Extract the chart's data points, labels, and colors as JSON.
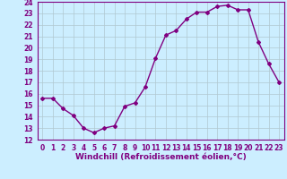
{
  "x": [
    0,
    1,
    2,
    3,
    4,
    5,
    6,
    7,
    8,
    9,
    10,
    11,
    12,
    13,
    14,
    15,
    16,
    17,
    18,
    19,
    20,
    21,
    22,
    23
  ],
  "y": [
    15.6,
    15.6,
    14.7,
    14.1,
    13.0,
    12.6,
    13.0,
    13.2,
    14.9,
    15.2,
    16.6,
    19.1,
    21.1,
    21.5,
    22.5,
    23.1,
    23.1,
    23.6,
    23.7,
    23.3,
    23.3,
    20.5,
    18.6,
    17.0
  ],
  "color": "#800080",
  "bg_color": "#cceeff",
  "grid_color": "#b0c8d0",
  "xlabel": "Windchill (Refroidissement éolien,°C)",
  "ylim": [
    12,
    24
  ],
  "xlim_min": -0.5,
  "xlim_max": 23.5,
  "yticks": [
    12,
    13,
    14,
    15,
    16,
    17,
    18,
    19,
    20,
    21,
    22,
    23,
    24
  ],
  "xticks": [
    0,
    1,
    2,
    3,
    4,
    5,
    6,
    7,
    8,
    9,
    10,
    11,
    12,
    13,
    14,
    15,
    16,
    17,
    18,
    19,
    20,
    21,
    22,
    23
  ],
  "xlabel_fontsize": 6.5,
  "tick_fontsize": 5.5
}
